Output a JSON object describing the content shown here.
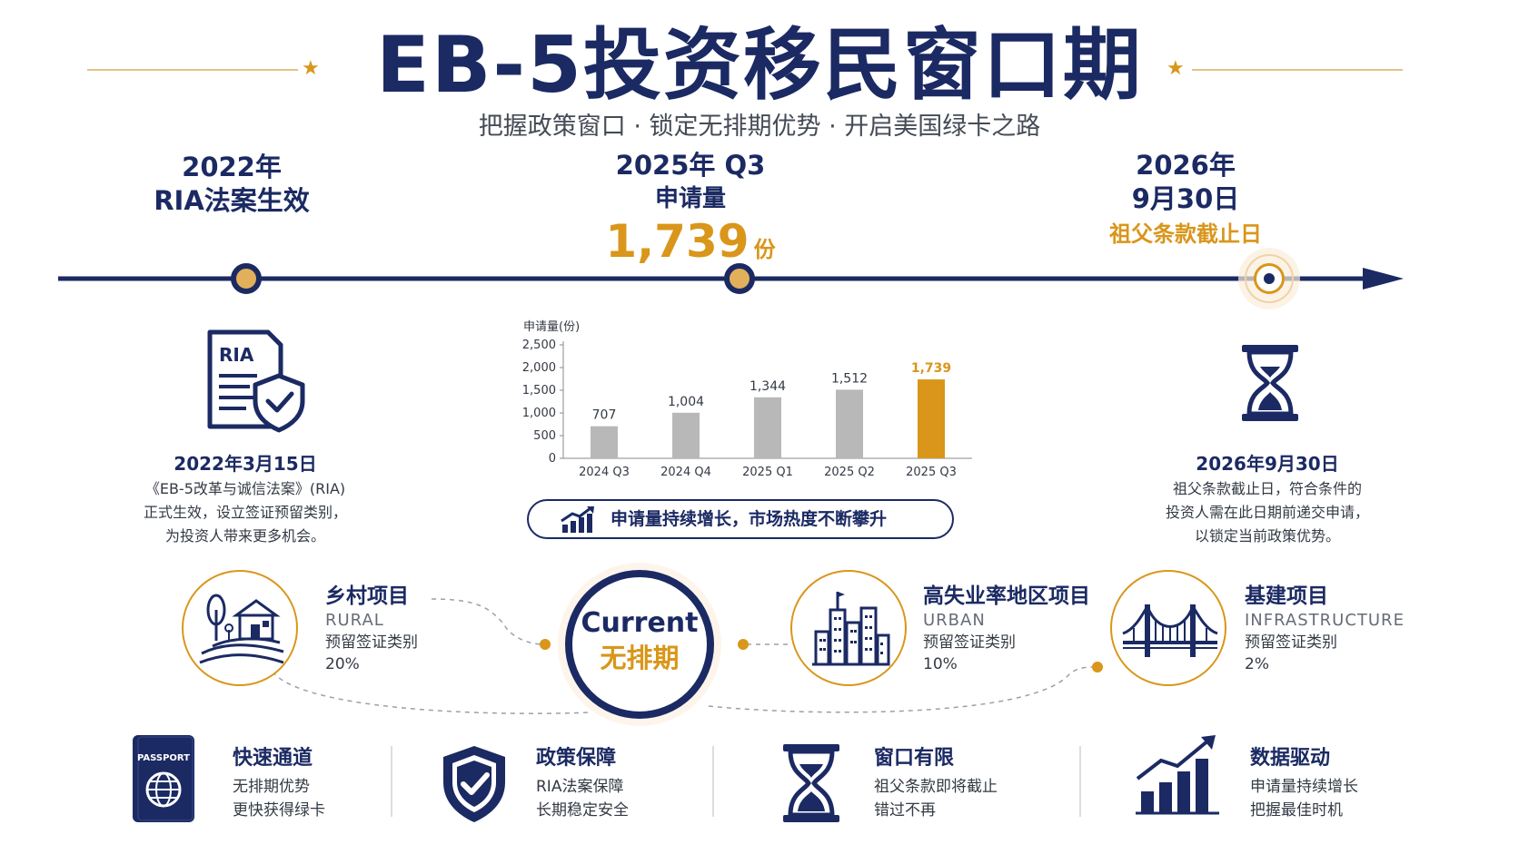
{
  "header": {
    "title": "EB-5投资移民窗口期",
    "subtitle": "把握政策窗口 · 锁定无排期优势 · 开启美国绿卡之路"
  },
  "colors": {
    "navy": "#1b2a63",
    "gold": "#d9961a",
    "bar_grey": "#b8b8b8"
  },
  "timeline": {
    "left": {
      "year": "2022年",
      "label": "RIA法案生效",
      "icon": "ria-document-shield-icon",
      "date": "2022年3月15日",
      "lines": [
        "《EB-5改革与诚信法案》(RIA)",
        "正式生效，设立签证预留类别，",
        "为投资人带来更多机会。"
      ]
    },
    "middle": {
      "year": "2025年 Q3",
      "label": "申请量",
      "value": "1,739",
      "unit": "份"
    },
    "right": {
      "year": "2026年",
      "date_short": "9月30日",
      "label": "祖父条款截止日",
      "icon": "hourglass-icon",
      "date": "2026年9月30日",
      "lines": [
        "祖父条款截止日，符合条件的",
        "投资人需在此日期前递交申请，",
        "以锁定当前政策优势。"
      ]
    }
  },
  "chart_data": {
    "type": "bar",
    "ylabel": "申请量(份)",
    "categories": [
      "2024 Q3",
      "2024 Q4",
      "2025 Q1",
      "2025 Q2",
      "2025 Q3"
    ],
    "values": [
      707,
      1004,
      1344,
      1512,
      1739
    ],
    "value_labels": [
      "707",
      "1,004",
      "1,344",
      "1,512",
      "1,739"
    ],
    "highlight_index": 4,
    "ylim": [
      0,
      2500
    ],
    "yticks": [
      0,
      500,
      1000,
      1500,
      2000,
      2500
    ],
    "ytick_labels": [
      "0",
      "500",
      "1,000",
      "1,500",
      "2,000",
      "2,500"
    ],
    "grid": false
  },
  "trend_banner": {
    "text": "申请量持续增长，市场热度不断攀升",
    "icon": "trending-up-chart-icon"
  },
  "current": {
    "en": "Current",
    "zh": "无排期"
  },
  "categories": [
    {
      "title": "乡村项目",
      "en": "RURAL",
      "desc": "预留签证类别",
      "pct": "20%",
      "icon": "rural-house-icon"
    },
    {
      "title": "高失业率地区项目",
      "en": "URBAN",
      "desc": "预留签证类别",
      "pct": "10%",
      "icon": "city-buildings-icon"
    },
    {
      "title": "基建项目",
      "en": "INFRASTRUCTURE",
      "desc": "预留签证类别",
      "pct": "2%",
      "icon": "bridge-icon"
    }
  ],
  "features": [
    {
      "title": "快速通道",
      "lines": [
        "无排期优势",
        "更快获得绿卡"
      ],
      "icon": "passport-icon",
      "icon_text": "PASSPORT"
    },
    {
      "title": "政策保障",
      "lines": [
        "RIA法案保障",
        "长期稳定安全"
      ],
      "icon": "shield-check-icon"
    },
    {
      "title": "窗口有限",
      "lines": [
        "祖父条款即将截止",
        "错过不再"
      ],
      "icon": "hourglass-icon"
    },
    {
      "title": "数据驱动",
      "lines": [
        "申请量持续增长",
        "把握最佳时机"
      ],
      "icon": "growth-chart-icon"
    }
  ]
}
